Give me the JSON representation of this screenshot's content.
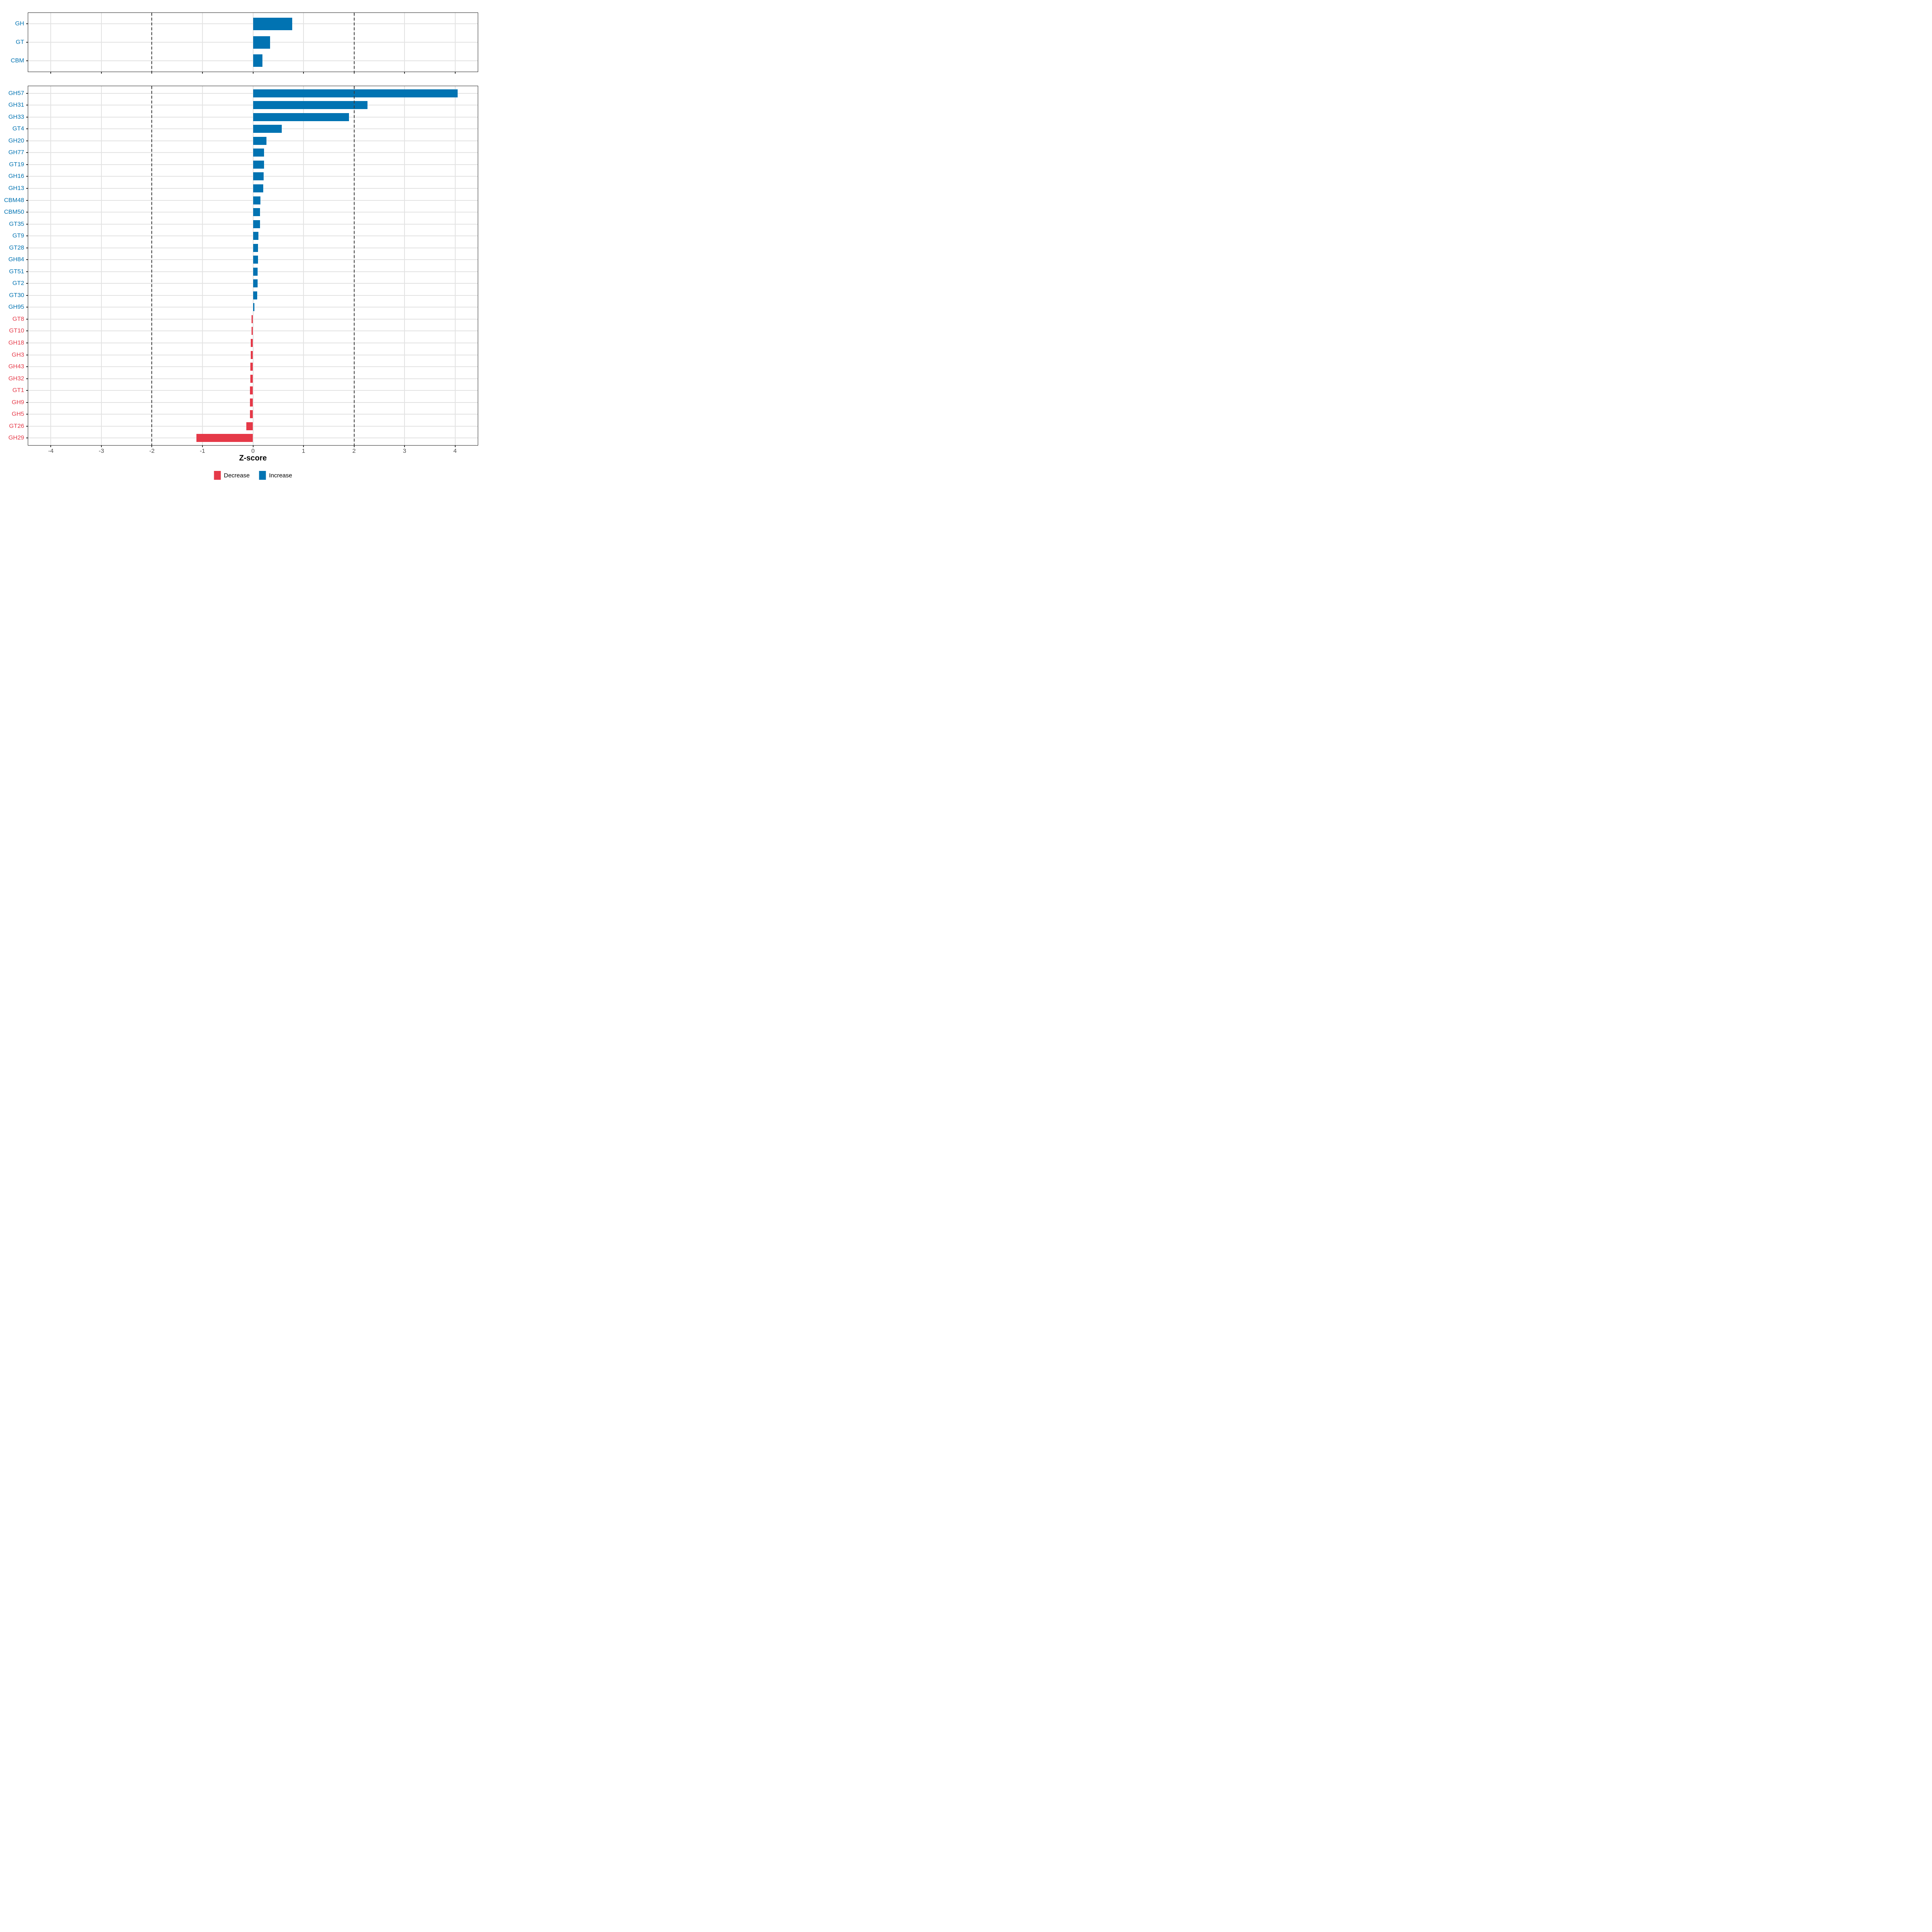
{
  "chart_data": {
    "type": "bar",
    "orientation": "horizontal",
    "title": "",
    "xlabel": "Z-score",
    "ylabel": "",
    "xlim": [
      -4.45,
      4.45
    ],
    "x_ticks": [
      -4,
      -3,
      -2,
      -1,
      0,
      1,
      2,
      3,
      4
    ],
    "reference_lines": [
      -2,
      2
    ],
    "grid": true,
    "legend_position": "bottom-center",
    "colors": {
      "increase": "#0173b2",
      "decrease": "#e53948",
      "gridline": "#e3e3e3",
      "panel_border": "#252525",
      "tick_label": "#4d4d4d",
      "reference_line": "#3d3d3d"
    },
    "legend": [
      {
        "label": "Decrease",
        "color": "#e53948"
      },
      {
        "label": "Increase",
        "color": "#0173b2"
      }
    ],
    "panels": [
      {
        "id": "cazyme-classes",
        "categories": [
          "GH",
          "GT",
          "CBM"
        ],
        "values": [
          0.78,
          0.34,
          0.19
        ]
      },
      {
        "id": "cazyme-families",
        "categories": [
          "GH57",
          "GH31",
          "GH33",
          "GT4",
          "GH20",
          "GH77",
          "GT19",
          "GH16",
          "GH13",
          "CBM48",
          "CBM50",
          "GT35",
          "GT9",
          "GT28",
          "GH84",
          "GT51",
          "GT2",
          "GT30",
          "GH95",
          "GT8",
          "GT10",
          "GH18",
          "GH3",
          "GH43",
          "GH32",
          "GT1",
          "GH9",
          "GH5",
          "GT26",
          "GH29"
        ],
        "values": [
          4.05,
          2.27,
          1.9,
          0.57,
          0.27,
          0.22,
          0.22,
          0.21,
          0.2,
          0.15,
          0.14,
          0.14,
          0.11,
          0.1,
          0.1,
          0.09,
          0.09,
          0.08,
          0.03,
          -0.03,
          -0.03,
          -0.04,
          -0.04,
          -0.05,
          -0.05,
          -0.06,
          -0.06,
          -0.06,
          -0.13,
          -1.12
        ]
      }
    ]
  }
}
